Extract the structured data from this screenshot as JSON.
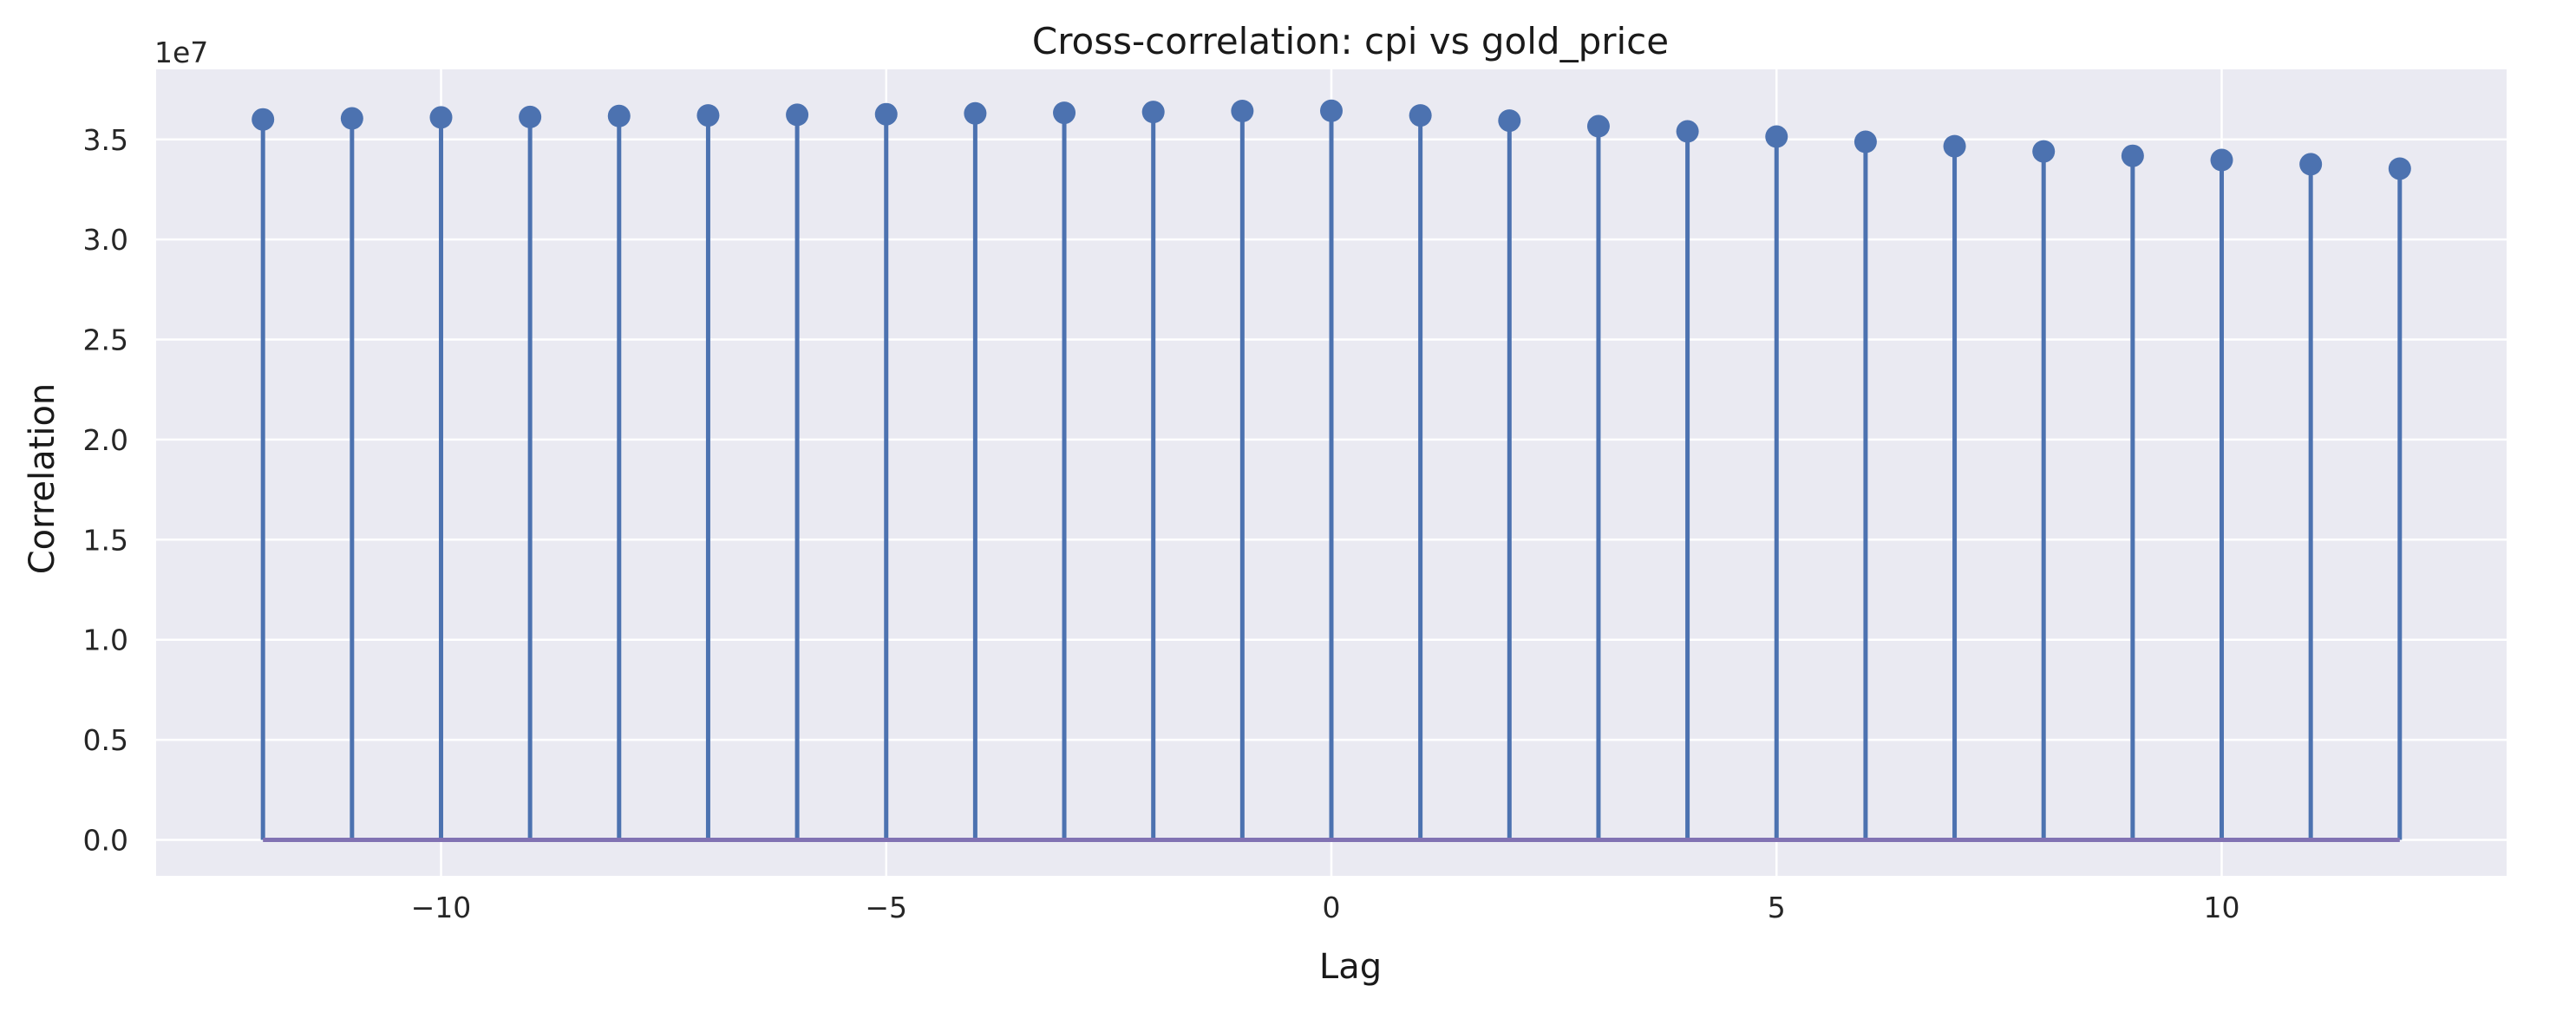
{
  "chart_data": {
    "type": "stem",
    "title": "Cross-correlation: cpi vs gold_price",
    "xlabel": "Lag",
    "ylabel": "Correlation",
    "y_offset_label": "1e7",
    "x": [
      -12,
      -11,
      -10,
      -9,
      -8,
      -7,
      -6,
      -5,
      -4,
      -3,
      -2,
      -1,
      0,
      1,
      2,
      3,
      4,
      5,
      6,
      7,
      8,
      9,
      10,
      11,
      12
    ],
    "values": [
      36000000,
      36050000,
      36100000,
      36120000,
      36170000,
      36200000,
      36230000,
      36260000,
      36300000,
      36330000,
      36370000,
      36420000,
      36430000,
      36200000,
      35940000,
      35660000,
      35400000,
      35140000,
      34880000,
      34660000,
      34400000,
      34180000,
      33970000,
      33760000,
      33540000
    ],
    "xlim": [
      -13.2,
      13.2
    ],
    "ylim": [
      -1800000.0,
      38500000.0
    ],
    "x_ticks": [
      -10,
      -5,
      0,
      5,
      10
    ],
    "x_tick_labels": [
      "−10",
      "−5",
      "0",
      "5",
      "10"
    ],
    "y_ticks": [
      0,
      5000000.0,
      10000000.0,
      15000000.0,
      20000000.0,
      25000000.0,
      30000000.0,
      35000000.0
    ],
    "y_tick_labels": [
      "0.0",
      "0.5",
      "1.0",
      "1.5",
      "2.0",
      "2.5",
      "3.0",
      "3.5"
    ],
    "grid": true,
    "colors": {
      "background": "#eaeaf2",
      "grid": "#ffffff",
      "stem": "#4c72b0",
      "baseline": "#8172b3"
    }
  }
}
